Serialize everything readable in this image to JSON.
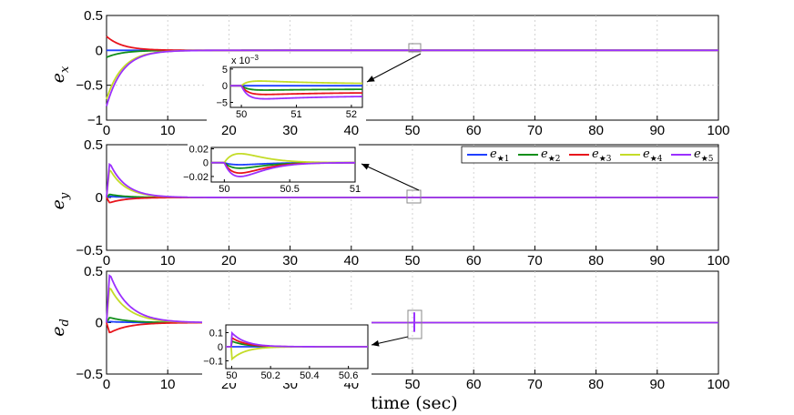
{
  "colors": {
    "series": [
      "#1f3fff",
      "#0f8f1a",
      "#e8141c",
      "#c4dc28",
      "#9b30ff"
    ],
    "box": "#888888",
    "arrow": "#000000"
  },
  "xlabel": "time (sec)",
  "legend": {
    "placement": "panel-2-right",
    "entries": [
      {
        "main": "e",
        "sub": "★1"
      },
      {
        "main": "e",
        "sub": "★2"
      },
      {
        "main": "e",
        "sub": "★3"
      },
      {
        "main": "e",
        "sub": "★4"
      },
      {
        "main": "e",
        "sub": "★5"
      }
    ]
  },
  "chart_data": [
    {
      "type": "line",
      "ylabel_main": "e",
      "ylabel_sub": "x",
      "xlim": [
        0,
        100
      ],
      "ylim": [
        -1,
        0.5
      ],
      "xticks": [
        0,
        10,
        20,
        30,
        40,
        50,
        60,
        70,
        80,
        90,
        100
      ],
      "yticks": [
        -1,
        -0.5,
        0,
        0.5
      ],
      "ytick_labels": [
        "−1",
        "−0.5",
        "0",
        "0.5"
      ],
      "grid": true,
      "series_initial": [
        0.0,
        -0.1,
        0.2,
        -0.7,
        -0.8
      ],
      "decay_time_constant": 2.6,
      "inset": {
        "xlim": [
          49.8,
          52.2
        ],
        "ylim": [
          -0.0065,
          0.0055
        ],
        "xticks": [
          50,
          51,
          52
        ],
        "yticks": [
          -0.005,
          0,
          0.005
        ],
        "ytick_labels": [
          "−5",
          "0",
          "5"
        ],
        "scale_label": "x 10",
        "scale_exp": "−3",
        "disturbance_time": 50.0,
        "peaks": [
          0.0,
          -0.0015,
          -0.003,
          0.0018,
          -0.0045
        ],
        "final": [
          0.0,
          -0.001,
          -0.002,
          0.0005,
          -0.003
        ]
      }
    },
    {
      "type": "line",
      "ylabel_main": "e",
      "ylabel_sub": "y",
      "xlim": [
        0,
        100
      ],
      "ylim": [
        -0.5,
        0.5
      ],
      "xticks": [
        0,
        10,
        20,
        30,
        40,
        50,
        60,
        70,
        80,
        90,
        100
      ],
      "yticks": [
        -0.5,
        0,
        0.5
      ],
      "ytick_labels": [
        "−0.5",
        "0",
        "0.5"
      ],
      "grid": true,
      "series_peak": [
        0.01,
        0.03,
        -0.05,
        0.27,
        0.33
      ],
      "decay_time_constant": 2.6,
      "inset": {
        "xlim": [
          49.9,
          51.0
        ],
        "ylim": [
          -0.028,
          0.022
        ],
        "xticks": [
          50,
          50.5,
          51
        ],
        "xtick_labels": [
          "50",
          "50.5",
          "51"
        ],
        "yticks": [
          -0.02,
          0,
          0.02
        ],
        "ytick_labels": [
          "−0.02",
          "0",
          "0.02"
        ],
        "disturbance_time": 50.0,
        "peaks": [
          -0.003,
          -0.008,
          -0.015,
          0.013,
          -0.02
        ]
      }
    },
    {
      "type": "line",
      "ylabel_main": "e",
      "ylabel_sub": "d",
      "xlim": [
        0,
        100
      ],
      "ylim": [
        -0.5,
        0.5
      ],
      "xticks": [
        0,
        10,
        20,
        30,
        40,
        50,
        60,
        70,
        80,
        90,
        100
      ],
      "yticks": [
        -0.5,
        0,
        0.5
      ],
      "ytick_labels": [
        "−0.5",
        "0",
        "0.5"
      ],
      "grid": true,
      "series_peak": [
        0.01,
        0.05,
        -0.1,
        0.35,
        0.48
      ],
      "decay_time_constant": 3.0,
      "inset": {
        "xlim": [
          49.97,
          50.7
        ],
        "ylim": [
          -0.155,
          0.155
        ],
        "xticks": [
          50,
          50.2,
          50.4,
          50.6
        ],
        "xtick_labels": [
          "50",
          "50.2",
          "50.4",
          "50.6"
        ],
        "yticks": [
          -0.1,
          0,
          0.1
        ],
        "ytick_labels": [
          "−0.1",
          "0",
          "0.1"
        ],
        "disturbance_time": 50.0,
        "peaks": [
          0.0,
          0.04,
          0.065,
          -0.09,
          0.1
        ]
      }
    }
  ]
}
